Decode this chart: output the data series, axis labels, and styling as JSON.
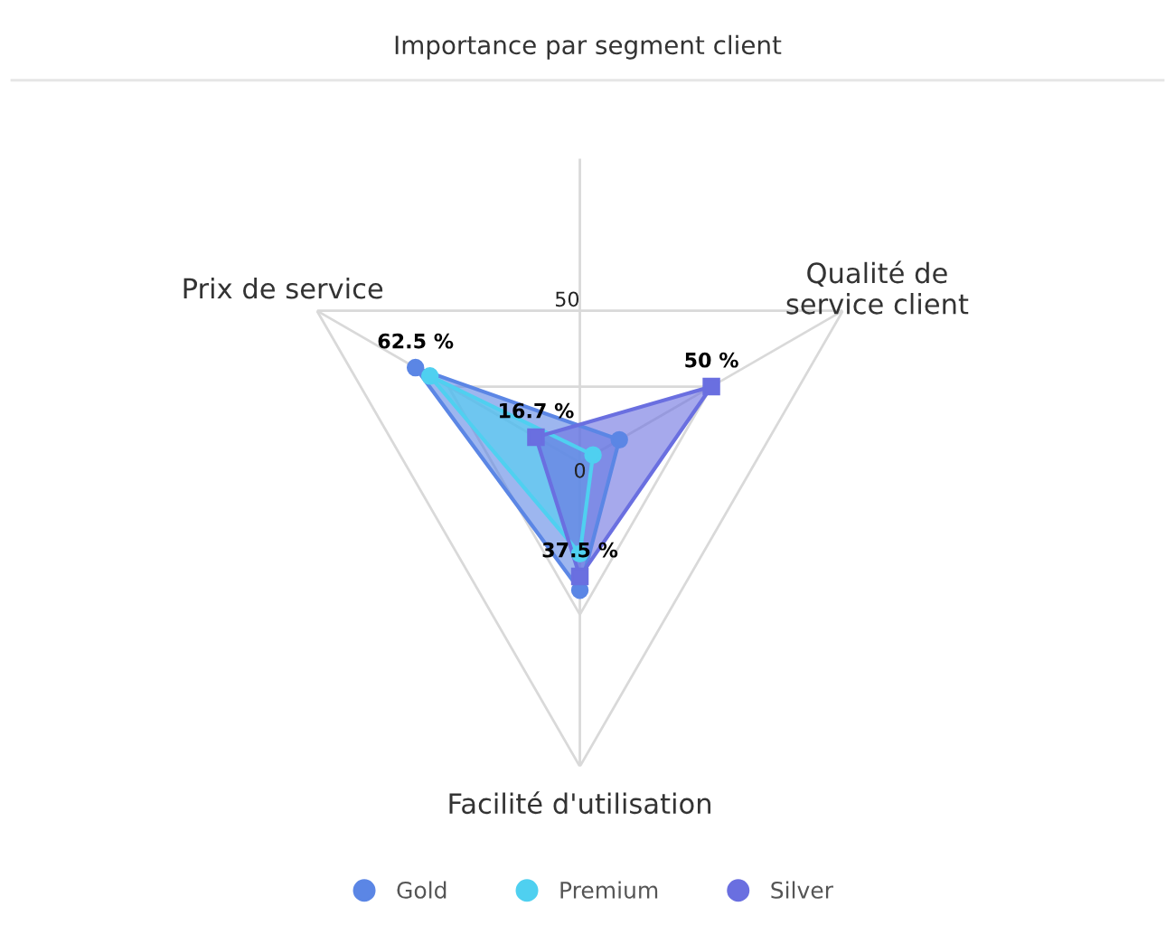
{
  "chart_data": {
    "type": "radar",
    "title": "Importance par segment client",
    "categories": [
      "Qualité de\nservice client",
      "Facilité d'utilisation",
      "Prix de service"
    ],
    "ylim": [
      0,
      100
    ],
    "yticks": [
      0,
      50
    ],
    "grid": true,
    "legend": "bottom",
    "series": [
      {
        "name": "Gold",
        "color": "#5b86e5",
        "marker": "circle",
        "values": [
          15,
          42,
          62.5
        ],
        "value_labels": [
          null,
          null,
          "62.5 %"
        ]
      },
      {
        "name": "Premium",
        "color": "#4fd0f0",
        "marker": "circle",
        "values": [
          5,
          30,
          57
        ],
        "value_labels": [
          null,
          null,
          null
        ]
      },
      {
        "name": "Silver",
        "color": "#6a6fe0",
        "marker": "square",
        "values": [
          50,
          37.5,
          16.7
        ],
        "value_labels": [
          "50 %",
          "37.5 %",
          "16.7 %"
        ]
      }
    ]
  }
}
